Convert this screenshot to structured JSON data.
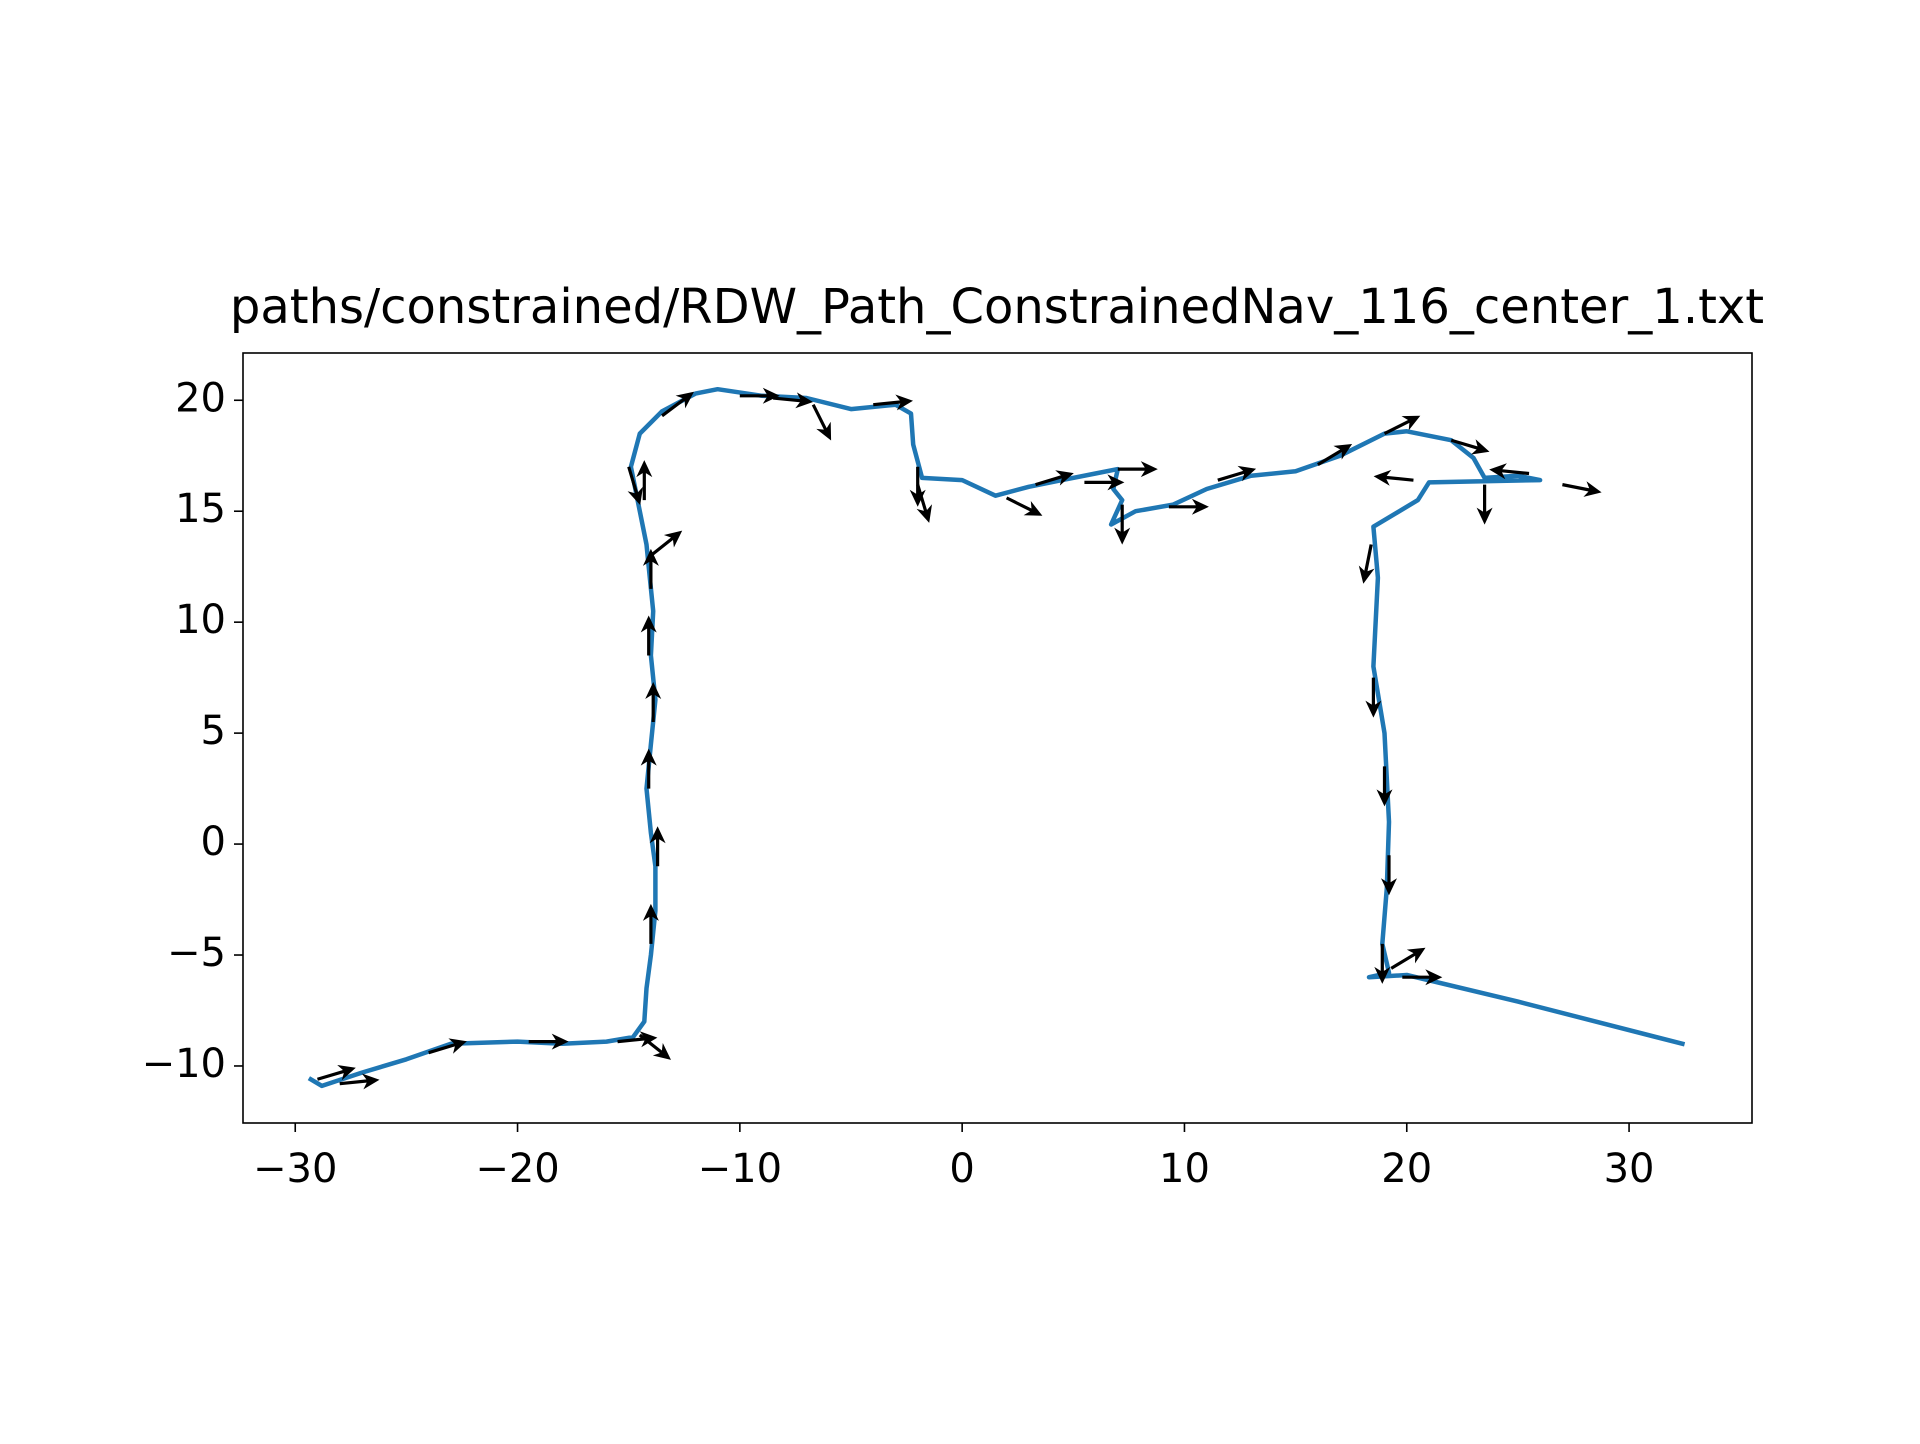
{
  "chart_data": {
    "type": "line",
    "title": "paths/constrained/RDW_Path_ConstrainedNav_116_center_1.txt",
    "xlim": [
      -32.35,
      35.53
    ],
    "ylim": [
      -12.57,
      22.13
    ],
    "xticks": [
      {
        "value": -30,
        "label": "−30"
      },
      {
        "value": -20,
        "label": "−20"
      },
      {
        "value": -10,
        "label": "−10"
      },
      0,
      10,
      20,
      30
    ],
    "yticks": [
      {
        "value": -10,
        "label": "−10"
      },
      {
        "value": -5,
        "label": "−5"
      },
      0,
      5,
      10,
      15,
      20
    ],
    "series": [
      {
        "color": "#1f77b4",
        "x": [
          -29.3,
          -28.8,
          -27,
          -25,
          -23,
          -20,
          -18,
          -16,
          -14.8,
          -14.3,
          -14.2,
          -14.0,
          -13.8,
          -13.8,
          -14.0,
          -14.2,
          -14.0,
          -13.8,
          -14.0,
          -13.9,
          -14.1,
          -14.2,
          -14.5,
          -14.9,
          -14.5,
          -13.5,
          -12,
          -11,
          -9,
          -7,
          -5,
          -3,
          -2.3,
          -2.2,
          -1.8,
          0,
          1.5,
          3,
          4.5,
          6,
          7,
          6.8,
          7.2,
          6.7,
          7.8,
          9.5,
          11,
          13,
          15,
          17,
          19,
          20,
          22,
          23,
          23.5,
          25,
          26,
          21,
          20.5,
          18.5,
          18.7,
          18.5,
          19,
          19.2,
          19.1,
          18.9,
          19.2,
          18.3,
          20,
          25,
          32.4
        ],
        "y": [
          -10.6,
          -10.9,
          -10.3,
          -9.7,
          -9.0,
          -8.9,
          -9.0,
          -8.9,
          -8.7,
          -8.0,
          -6.5,
          -5.0,
          -3.0,
          -1,
          0.5,
          2.5,
          4.5,
          6.5,
          8.5,
          10.5,
          12.5,
          13.5,
          15,
          17,
          18.5,
          19.5,
          20.3,
          20.5,
          20.2,
          20.1,
          19.6,
          19.8,
          19.4,
          18.0,
          16.5,
          16.4,
          15.7,
          16.1,
          16.4,
          16.7,
          16.9,
          16.0,
          15.5,
          14.4,
          15.0,
          15.3,
          16.0,
          16.6,
          16.8,
          17.5,
          18.5,
          18.6,
          18.2,
          17.4,
          16.5,
          16.6,
          16.4,
          16.3,
          15.5,
          14.3,
          12,
          8,
          5,
          1,
          -2,
          -4.5,
          -5.8,
          -6.0,
          -5.9,
          -7.1,
          -9.0
        ]
      }
    ],
    "quiver": {
      "color": "#000000",
      "x": [
        -29,
        -28,
        -24,
        -19.5,
        -15.5,
        -14.5,
        -14,
        -13.7,
        -14.1,
        -13.9,
        -14.1,
        -14,
        -14,
        -14.3,
        -15,
        -13.5,
        -10,
        -8.5,
        -6.7,
        -4,
        -2,
        -2,
        2,
        3.3,
        5.5,
        7,
        7.2,
        9.3,
        11.5,
        16,
        19,
        22,
        23.5,
        25.5,
        27,
        20.3,
        18.4,
        18.5,
        19,
        19.2,
        18.9,
        19.3,
        19.8
      ],
      "y": [
        -10.6,
        -10.8,
        -9.4,
        -8.9,
        -8.9,
        -8.6,
        -4.5,
        -1,
        2.5,
        5.5,
        8.5,
        11.5,
        13,
        15.5,
        17,
        19.3,
        20.2,
        20.1,
        19.8,
        19.8,
        17,
        16.2,
        15.6,
        16.2,
        16.3,
        16.9,
        15.3,
        15.2,
        16.4,
        17.1,
        18.5,
        18.2,
        16.2,
        16.7,
        16.2,
        16.4,
        13.5,
        7.5,
        3.5,
        -0.5,
        -4.5,
        -5.6,
        -6.0
      ],
      "u": [
        1,
        1,
        1,
        1,
        1,
        1,
        0,
        0,
        0,
        0,
        0,
        0,
        1,
        0,
        0.3,
        0.8,
        1,
        1,
        0.5,
        1,
        0,
        0.3,
        1,
        1,
        1,
        1,
        0,
        1,
        1,
        1,
        1,
        1,
        0,
        -1,
        1,
        -1,
        -0.2,
        0,
        0,
        0,
        0,
        1,
        1
      ],
      "v": [
        0.3,
        0.1,
        0.3,
        0,
        0.1,
        -0.8,
        1,
        1,
        1,
        1,
        1,
        1,
        0.8,
        1,
        -1,
        0.6,
        0,
        -0.1,
        -1,
        0.1,
        -1,
        -1,
        -0.5,
        0.3,
        0,
        0,
        -1,
        0,
        0.3,
        0.6,
        0.5,
        -0.3,
        -1,
        0.1,
        -0.2,
        0.1,
        -1,
        -1,
        -1,
        -1,
        -1,
        0.6,
        0
      ]
    }
  }
}
